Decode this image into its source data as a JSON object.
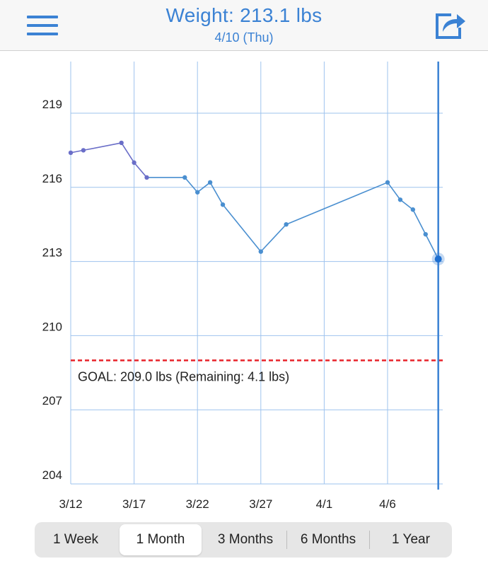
{
  "header": {
    "title": "Weight: 213.1 lbs",
    "subtitle": "4/10 (Thu)",
    "menu_icon": "hamburger-menu-icon",
    "share_icon": "share-export-icon"
  },
  "colors": {
    "accent": "#3b82d4",
    "line": "#4a8fd0",
    "line_early": "#6a6ec8",
    "grid": "#9ec3ee",
    "goal": "#e8232a"
  },
  "chart_data": {
    "type": "line",
    "title": "",
    "xlabel": "",
    "ylabel": "",
    "x_ticks": [
      "3/12",
      "3/17",
      "3/22",
      "3/27",
      "4/1",
      "4/6"
    ],
    "y_ticks": [
      "204",
      "207",
      "210",
      "213",
      "216",
      "219"
    ],
    "xlim": [
      "3/12",
      "4/10"
    ],
    "ylim": [
      204,
      221
    ],
    "grid": true,
    "series": [
      {
        "points": [
          {
            "x": "3/12",
            "y": 217.4
          },
          {
            "x": "3/13",
            "y": 217.5
          },
          {
            "x": "3/16",
            "y": 217.8
          },
          {
            "x": "3/17",
            "y": 217.0
          },
          {
            "x": "3/18",
            "y": 216.4
          },
          {
            "x": "3/21",
            "y": 216.4
          },
          {
            "x": "3/22",
            "y": 215.8
          },
          {
            "x": "3/23",
            "y": 216.2
          },
          {
            "x": "3/24",
            "y": 215.3
          },
          {
            "x": "3/27",
            "y": 213.4
          },
          {
            "x": "3/29",
            "y": 214.5
          },
          {
            "x": "4/6",
            "y": 216.2
          },
          {
            "x": "4/7",
            "y": 215.5
          },
          {
            "x": "4/8",
            "y": 215.1
          },
          {
            "x": "4/9",
            "y": 214.1
          },
          {
            "x": "4/10",
            "y": 213.1
          }
        ]
      }
    ],
    "selected": {
      "x": "4/10",
      "y": 213.1
    },
    "goal": {
      "value": 209.0,
      "label": "GOAL: 209.0 lbs (Remaining: 4.1 lbs)"
    }
  },
  "range_tabs": {
    "items": [
      "1 Week",
      "1 Month",
      "3 Months",
      "6 Months",
      "1 Year"
    ],
    "selected": "1 Month"
  }
}
